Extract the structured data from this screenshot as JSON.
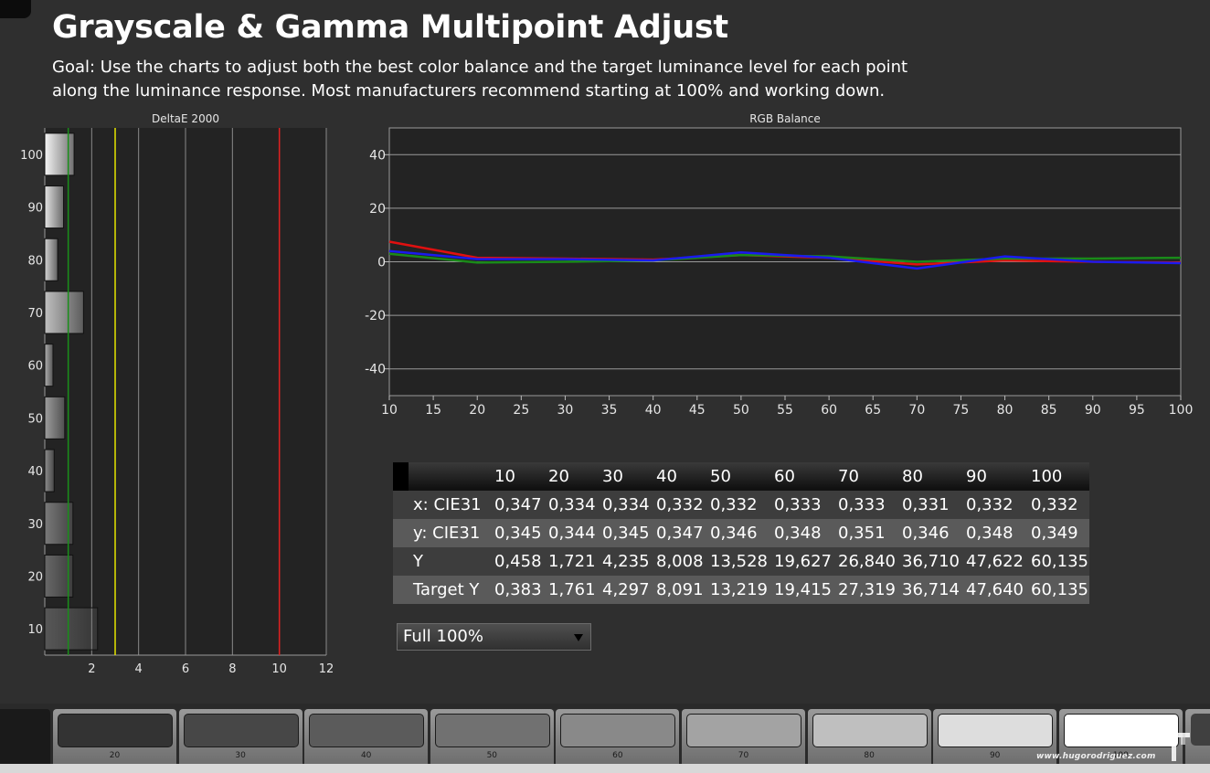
{
  "header": {
    "title": "Grayscale &  Gamma Multipoint Adjust",
    "goal_line1": "Goal: Use the charts to adjust both the best color balance and the target luminance level for each point",
    "goal_line2": "along the luminance response. Most manufacturers recommend starting at 100% and working down."
  },
  "chart_data": [
    {
      "type": "bar",
      "title": "DeltaE 2000",
      "orientation": "horizontal",
      "categories": [
        "10",
        "20",
        "30",
        "40",
        "50",
        "60",
        "70",
        "80",
        "90",
        "100"
      ],
      "values": [
        2.25,
        1.2,
        1.2,
        0.4,
        0.85,
        0.35,
        1.65,
        0.55,
        0.8,
        1.25
      ],
      "xlim": [
        0,
        12
      ],
      "x_ticks": [
        "2",
        "4",
        "6",
        "8",
        "10",
        "12"
      ],
      "reference_lines": [
        {
          "value": 1,
          "color": "#1a8f1a"
        },
        {
          "value": 3,
          "color": "#e6e600"
        },
        {
          "value": 10,
          "color": "#e02020"
        }
      ]
    },
    {
      "type": "line",
      "title": "RGB Balance",
      "x": [
        10,
        20,
        30,
        40,
        50,
        60,
        70,
        80,
        90,
        100
      ],
      "x_ticks": [
        "10",
        "15",
        "20",
        "25",
        "30",
        "35",
        "40",
        "45",
        "50",
        "55",
        "60",
        "65",
        "70",
        "75",
        "80",
        "85",
        "90",
        "95",
        "100"
      ],
      "y_ticks": [
        "40",
        "20",
        "0",
        "-20",
        "-40"
      ],
      "ylim": [
        -50,
        50
      ],
      "series": [
        {
          "color": "#e01010",
          "values": [
            7.5,
            1.5,
            1.2,
            0.8,
            2.5,
            1.5,
            -1.0,
            0.5,
            0.0,
            -0.3
          ]
        },
        {
          "color": "#1a8a1a",
          "values": [
            3.0,
            -0.3,
            0.0,
            0.5,
            2.5,
            2.0,
            0.0,
            1.2,
            1.2,
            1.5
          ]
        },
        {
          "color": "#1a1aee",
          "values": [
            4.0,
            1.0,
            1.0,
            0.5,
            3.5,
            1.5,
            -2.5,
            2.0,
            0.0,
            -0.5
          ]
        }
      ]
    }
  ],
  "table": {
    "columns": [
      "10",
      "20",
      "30",
      "40",
      "50",
      "60",
      "70",
      "80",
      "90",
      "100"
    ],
    "rows": [
      {
        "label": "x: CIE31",
        "values": [
          "0,347",
          "0,334",
          "0,334",
          "0,332",
          "0,332",
          "0,333",
          "0,333",
          "0,331",
          "0,332",
          "0,332"
        ]
      },
      {
        "label": "y: CIE31",
        "values": [
          "0,345",
          "0,344",
          "0,345",
          "0,347",
          "0,346",
          "0,348",
          "0,351",
          "0,346",
          "0,348",
          "0,349"
        ]
      },
      {
        "label": "Y",
        "values": [
          "0,458",
          "1,721",
          "4,235",
          "8,008",
          "13,528",
          "19,627",
          "26,840",
          "36,710",
          "47,622",
          "60,135"
        ]
      },
      {
        "label": "Target Y",
        "values": [
          "0,383",
          "1,761",
          "4,297",
          "8,091",
          "13,219",
          "19,415",
          "27,319",
          "36,714",
          "47,640",
          "60,135"
        ]
      }
    ]
  },
  "dropdown": {
    "selected": "Full  100%"
  },
  "patches": [
    {
      "label": "20",
      "color": "#333333"
    },
    {
      "label": "30",
      "color": "#474747"
    },
    {
      "label": "40",
      "color": "#5b5b5b"
    },
    {
      "label": "50",
      "color": "#717171"
    },
    {
      "label": "60",
      "color": "#898989"
    },
    {
      "label": "70",
      "color": "#a3a3a3"
    },
    {
      "label": "80",
      "color": "#bfbfbf"
    },
    {
      "label": "90",
      "color": "#dddddd"
    },
    {
      "label": "100",
      "color": "#ffffff"
    }
  ],
  "watermark": "www.hugorodriguez.com"
}
